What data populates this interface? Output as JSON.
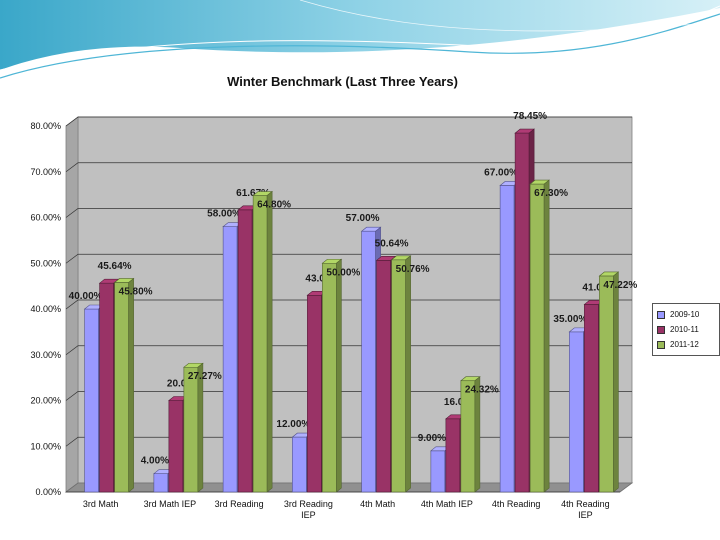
{
  "chart_data": {
    "type": "bar",
    "title": "Winter Benchmark (Last Three Years)",
    "categories": [
      "3rd Math",
      "3rd Math IEP",
      "3rd Reading",
      "3rd Reading IEP",
      "4th Math",
      "4th Math IEP",
      "4th Reading",
      "4th Reading IEP"
    ],
    "series": [
      {
        "name": "2009-10",
        "values": [
          40.0,
          4.0,
          58.0,
          12.0,
          57.0,
          9.0,
          67.0,
          35.0
        ],
        "labels": [
          "40.00%",
          "4.00%",
          "58.00%",
          "12.00%",
          "57.00%",
          "9.00%",
          "67.00%",
          "35.00%"
        ],
        "color": "#9999ff"
      },
      {
        "name": "2010-11",
        "values": [
          45.64,
          20.0,
          61.67,
          43.0,
          50.64,
          16.0,
          78.45,
          41.0
        ],
        "labels": [
          "45.64%",
          "20.00%",
          "61.67%",
          "43.00%",
          "50.64%",
          "16.00%",
          "78.45%",
          "41.00%"
        ],
        "color": "#993366"
      },
      {
        "name": "2011-12",
        "values": [
          45.8,
          27.27,
          64.8,
          50.0,
          50.76,
          24.32,
          67.3,
          47.22
        ],
        "labels": [
          "45.80%",
          "27.27%",
          "64.80%",
          "50.00%",
          "50.76%",
          "24.32%",
          "67.30%",
          "47.22%"
        ],
        "color": "#9bbb59"
      }
    ],
    "ylim": [
      0,
      80
    ],
    "yticks": [
      "0.00%",
      "10.00%",
      "20.00%",
      "30.00%",
      "40.00%",
      "50.00%",
      "60.00%",
      "70.00%",
      "80.00%"
    ],
    "grid": true,
    "legend": "right",
    "xlabel": "",
    "ylabel": ""
  }
}
